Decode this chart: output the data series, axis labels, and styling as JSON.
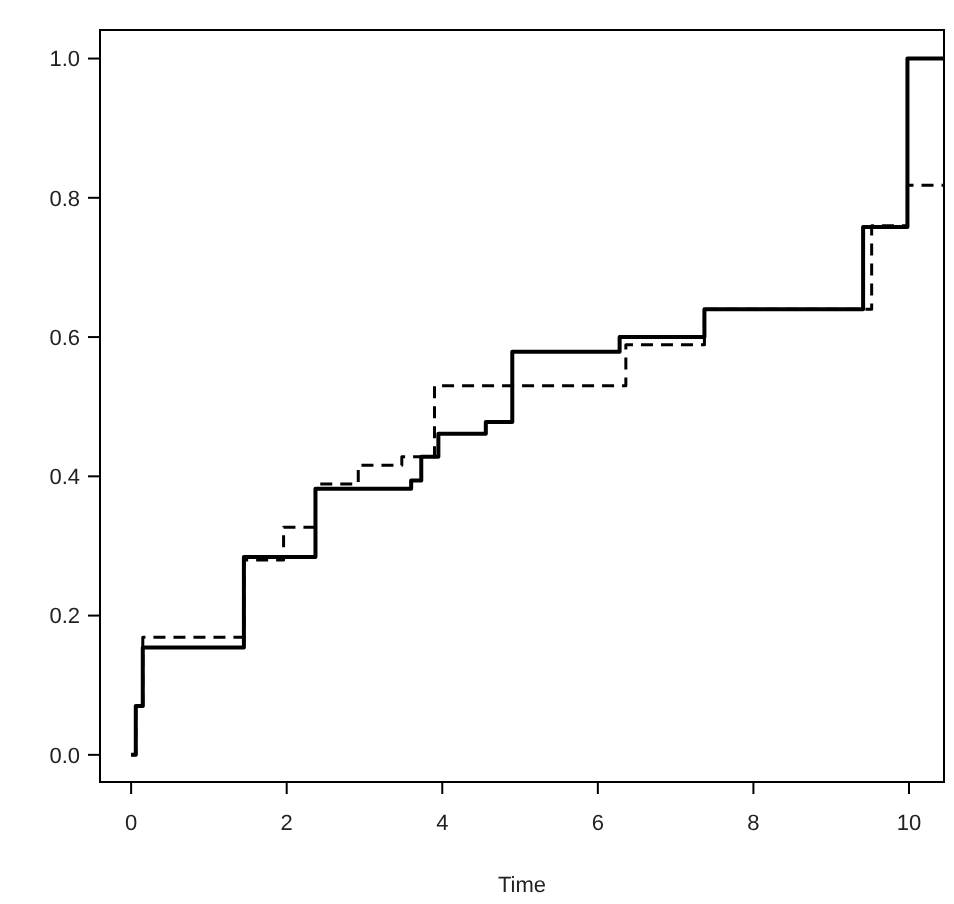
{
  "chart_data": {
    "type": "step",
    "xlabel": "Time",
    "xlim": [
      -0.4,
      10.45
    ],
    "ylim": [
      -0.039,
      1.041
    ],
    "xticks": [
      0,
      2,
      4,
      6,
      8,
      10
    ],
    "yticks": [
      {
        "value": 0,
        "label": "0.0"
      },
      {
        "value": 0.2,
        "label": "0.2"
      },
      {
        "value": 0.4,
        "label": "0.4"
      },
      {
        "value": 0.6,
        "label": "0.6"
      },
      {
        "value": 0.8,
        "label": "0.8"
      },
      {
        "value": 1,
        "label": "1.0"
      }
    ],
    "series": [
      {
        "color": "#000000",
        "line_style": "solid",
        "x": [
          0,
          0.06,
          0.15,
          1.45,
          2.37,
          3.6,
          3.73,
          3.95,
          4.56,
          4.9,
          6.28,
          7.37,
          9.41,
          9.98,
          10.44
        ],
        "values": [
          0,
          0.07,
          0.154,
          0.284,
          0.382,
          0.394,
          0.428,
          0.461,
          0.478,
          0.579,
          0.6,
          0.64,
          0.758,
          1.0,
          1.0
        ]
      },
      {
        "color": "#000000",
        "line_style": "dashed",
        "x": [
          0,
          0.06,
          0.15,
          1.45,
          1.96,
          2.37,
          2.92,
          3.48,
          3.9,
          6.36,
          7.37,
          9.52,
          9.98,
          10.44
        ],
        "values": [
          0,
          0.07,
          0.169,
          0.28,
          0.327,
          0.389,
          0.416,
          0.428,
          0.53,
          0.589,
          0.64,
          0.76,
          0.818,
          0.818
        ]
      }
    ]
  }
}
